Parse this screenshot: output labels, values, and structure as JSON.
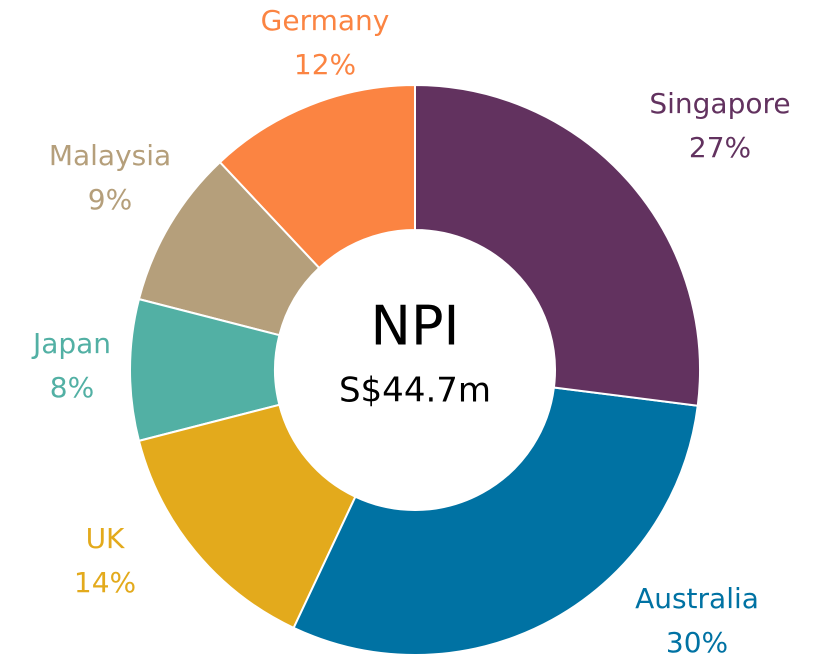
{
  "chart_data": {
    "type": "donut",
    "title": "NPI",
    "subtitle": "S$44.7m",
    "categories": [
      "Singapore",
      "Australia",
      "UK",
      "Japan",
      "Malaysia",
      "Germany"
    ],
    "values": [
      27,
      30,
      14,
      8,
      9,
      12
    ],
    "value_labels": [
      "27%",
      "30%",
      "14%",
      "8%",
      "9%",
      "12%"
    ],
    "colors": [
      "#62325f",
      "#0072a3",
      "#e3aa1c",
      "#52b0a4",
      "#b59f7b",
      "#fb8442"
    ]
  }
}
